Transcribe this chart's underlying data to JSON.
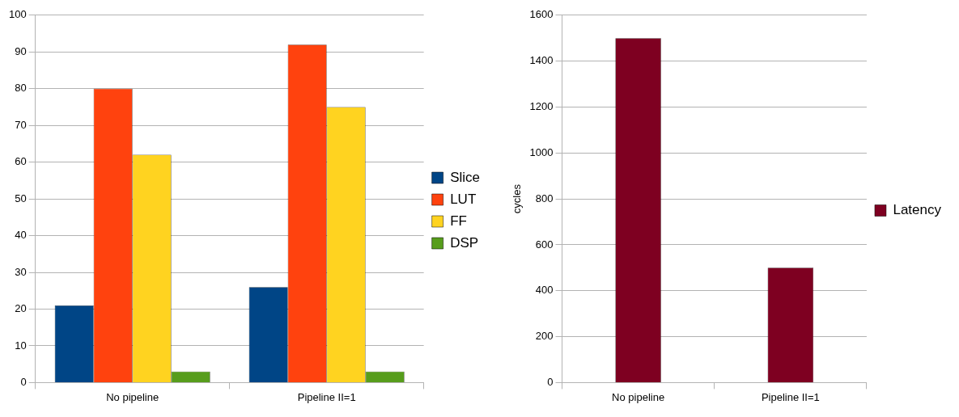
{
  "chart_data": [
    {
      "type": "bar",
      "categories": [
        "No pipeline",
        "Pipeline II=1"
      ],
      "series": [
        {
          "name": "Slice",
          "color": "#004586",
          "values": [
            21,
            26
          ]
        },
        {
          "name": "LUT",
          "color": "#ff420e",
          "values": [
            80,
            92
          ]
        },
        {
          "name": "FF",
          "color": "#ffd320",
          "values": [
            62,
            75
          ]
        },
        {
          "name": "DSP",
          "color": "#579d1c",
          "values": [
            3,
            3
          ]
        }
      ],
      "ylim": [
        0,
        100
      ],
      "yticks": [
        0,
        10,
        20,
        30,
        40,
        50,
        60,
        70,
        80,
        90,
        100
      ],
      "grid": "y",
      "legend": "right"
    },
    {
      "type": "bar",
      "categories": [
        "No pipeline",
        "Pipeline II=1"
      ],
      "series": [
        {
          "name": "Latency",
          "color": "#7e0021",
          "values": [
            1500,
            500
          ]
        }
      ],
      "ylabel": "cycles",
      "ylim": [
        0,
        1600
      ],
      "yticks": [
        0,
        200,
        400,
        600,
        800,
        1000,
        1200,
        1400,
        1600
      ],
      "grid": "y",
      "legend": "right"
    }
  ]
}
